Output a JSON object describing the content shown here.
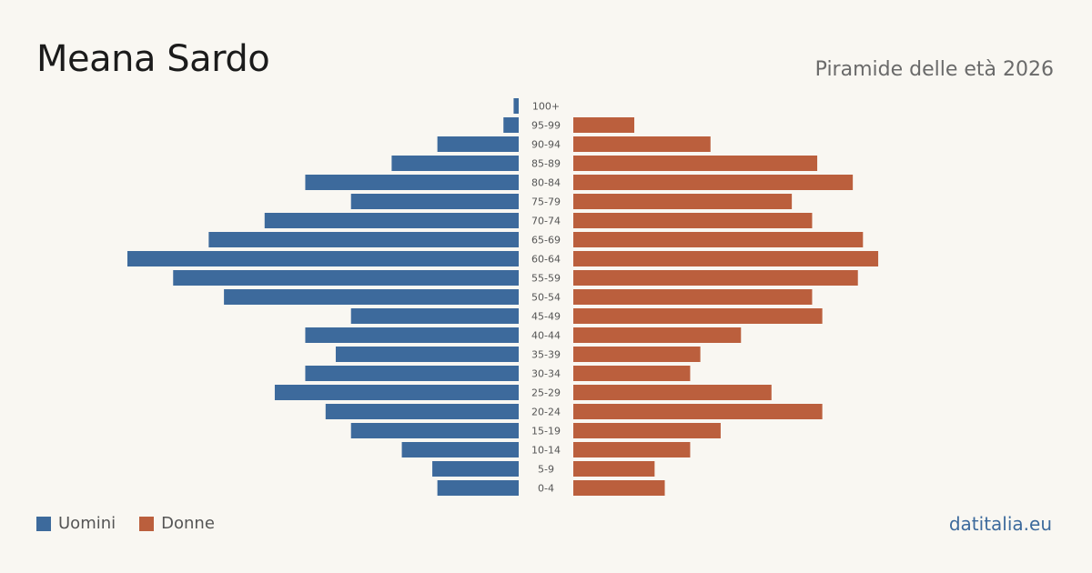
{
  "title": "Meana Sardo",
  "subtitle": "Piramide delle età 2026",
  "brand": "datitalia.eu",
  "colors": {
    "men": "#3d6a9c",
    "women": "#bb5f3d",
    "background": "#f9f7f2"
  },
  "legend": {
    "men": "Uomini",
    "women": "Donne",
    "placement": "bottom-left"
  },
  "chart_data": {
    "type": "bar",
    "orientation": "horizontal-population-pyramid",
    "categories": [
      "100+",
      "95-99",
      "90-94",
      "85-89",
      "80-84",
      "75-79",
      "70-74",
      "65-69",
      "60-64",
      "55-59",
      "50-54",
      "45-49",
      "40-44",
      "35-39",
      "30-34",
      "25-29",
      "20-24",
      "15-19",
      "10-14",
      "5-9",
      "0-4"
    ],
    "series": [
      {
        "name": "Uomini",
        "values": [
          1,
          3,
          16,
          25,
          42,
          33,
          50,
          61,
          77,
          68,
          58,
          33,
          42,
          36,
          42,
          48,
          38,
          33,
          23,
          17,
          16
        ]
      },
      {
        "name": "Donne",
        "values": [
          0,
          12,
          27,
          48,
          55,
          43,
          47,
          57,
          60,
          56,
          47,
          49,
          33,
          25,
          23,
          39,
          49,
          29,
          23,
          16,
          18
        ]
      }
    ],
    "xlabel": "",
    "ylabel": "",
    "grid": false
  }
}
